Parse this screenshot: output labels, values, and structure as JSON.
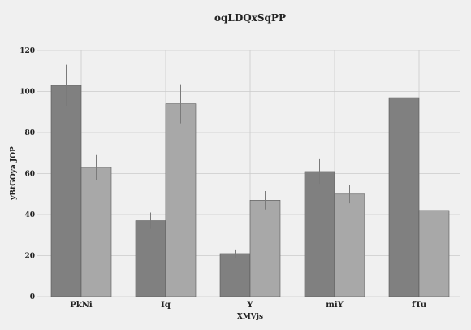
{
  "chart_data": {
    "type": "bar",
    "title": "oqLDQxSqPP",
    "xlabel": "XMVjs",
    "ylabel": "yBtGOya JOP",
    "categories": [
      "PkNi",
      "Iq",
      "Y",
      "miY",
      "fTu"
    ],
    "series": [
      {
        "values": [
          103,
          37,
          21,
          61,
          97
        ],
        "errors": [
          10,
          4,
          2,
          6,
          9.5
        ],
        "color": "#808080"
      },
      {
        "values": [
          63,
          94,
          47,
          50,
          42
        ],
        "errors": [
          6,
          9.5,
          4.5,
          4.5,
          4
        ],
        "color": "#a8a8a8"
      }
    ],
    "ylim": [
      0,
      120
    ],
    "yticks": [
      0,
      20,
      40,
      60,
      80,
      100,
      120
    ],
    "grid": true,
    "background": "#f0f0f0",
    "grid_color": "#cbcbcb",
    "bar_edge_color": "#555555",
    "error_color": "#7a7a7a"
  }
}
